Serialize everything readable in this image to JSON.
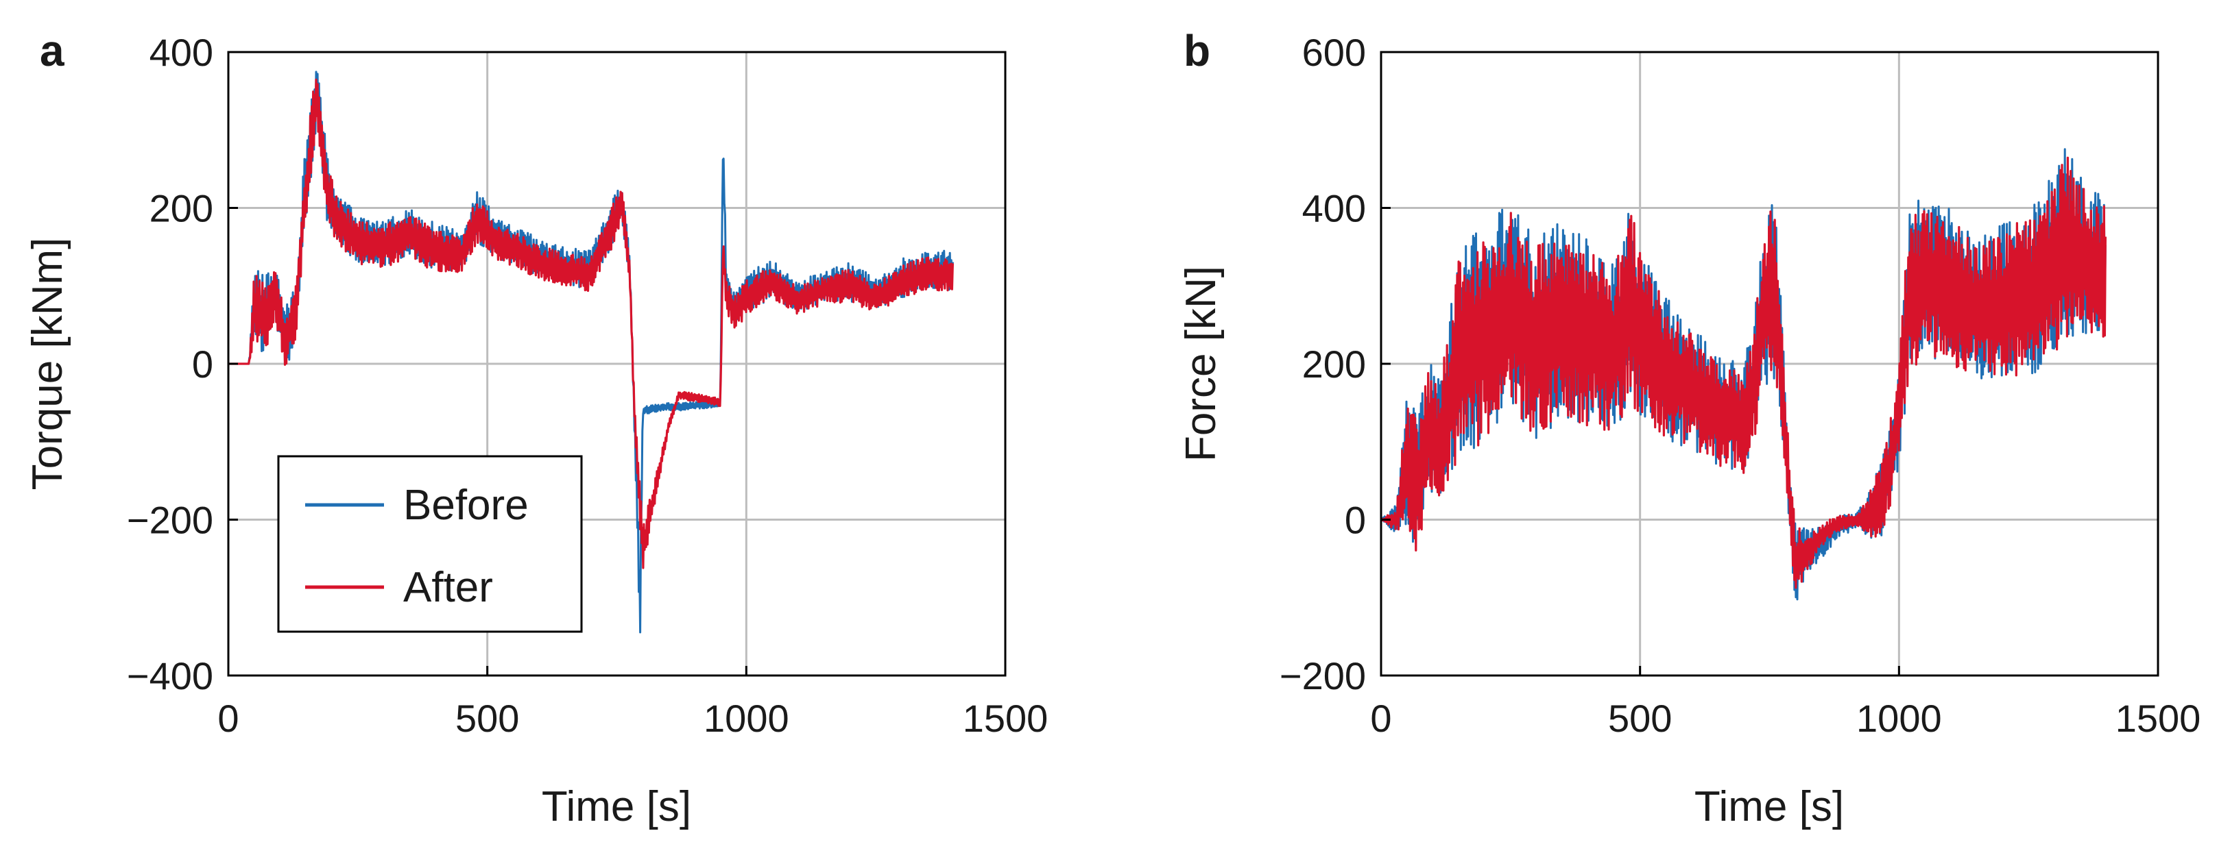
{
  "colors": {
    "before": "#1f6fb4",
    "after": "#d7132b",
    "grid": "#bdbdbd",
    "axis": "#000000"
  },
  "chart_data": [
    {
      "type": "line",
      "panel_label": "a",
      "xlabel": "Time [s]",
      "ylabel": "Torque [kNm]",
      "xlim": [
        0,
        1500
      ],
      "ylim": [
        -400,
        400
      ],
      "xticks": [
        "0",
        "500",
        "1000",
        "1500"
      ],
      "yticks": [
        "−400",
        "−200",
        "0",
        "200",
        "400"
      ],
      "grid": true,
      "legend": {
        "placement": "lower-left",
        "entries": [
          "Before",
          "After"
        ]
      },
      "series": [
        {
          "name": "Before",
          "color": "#1f6fb4",
          "x": [
            0,
            40,
            50,
            70,
            90,
            110,
            130,
            145,
            160,
            170,
            190,
            210,
            250,
            300,
            350,
            400,
            450,
            480,
            520,
            560,
            600,
            650,
            700,
            740,
            760,
            775,
            785,
            795,
            800,
            820,
            850,
            880,
            920,
            950,
            955,
            962,
            980,
            1000,
            1050,
            1100,
            1150,
            1200,
            1250,
            1300,
            1350,
            1400
          ],
          "y": [
            0,
            0,
            80,
            60,
            90,
            30,
            70,
            200,
            290,
            350,
            230,
            190,
            160,
            155,
            170,
            150,
            145,
            190,
            160,
            150,
            135,
            125,
            120,
            180,
            210,
            120,
            -90,
            -320,
            -60,
            -58,
            -55,
            -55,
            -52,
            -50,
            285,
            90,
            70,
            90,
            110,
            85,
            100,
            105,
            90,
            110,
            120,
            120
          ],
          "amplitude": [
            0,
            0,
            50,
            50,
            40,
            40,
            40,
            50,
            60,
            40,
            45,
            35,
            30,
            30,
            30,
            30,
            25,
            35,
            25,
            25,
            25,
            25,
            25,
            30,
            25,
            20,
            20,
            40,
            5,
            5,
            5,
            5,
            5,
            5,
            10,
            25,
            25,
            25,
            25,
            20,
            20,
            25,
            20,
            25,
            25,
            25
          ]
        },
        {
          "name": "After",
          "color": "#d7132b",
          "x": [
            0,
            40,
            50,
            70,
            90,
            110,
            130,
            145,
            160,
            170,
            190,
            210,
            250,
            300,
            350,
            400,
            450,
            480,
            520,
            560,
            600,
            650,
            700,
            740,
            760,
            775,
            785,
            800,
            850,
            870,
            920,
            950,
            955,
            962,
            980,
            1000,
            1050,
            1100,
            1150,
            1200,
            1250,
            1300,
            1350,
            1400
          ],
          "y": [
            0,
            0,
            75,
            55,
            85,
            30,
            65,
            195,
            285,
            345,
            225,
            185,
            155,
            150,
            165,
            145,
            140,
            185,
            155,
            145,
            130,
            120,
            115,
            175,
            205,
            115,
            -80,
            -240,
            -80,
            -40,
            -45,
            -50,
            150,
            85,
            65,
            85,
            105,
            80,
            95,
            100,
            85,
            105,
            115,
            115
          ],
          "amplitude": [
            0,
            0,
            45,
            45,
            35,
            35,
            35,
            45,
            55,
            35,
            40,
            30,
            28,
            28,
            28,
            28,
            22,
            30,
            22,
            22,
            22,
            22,
            22,
            28,
            22,
            18,
            18,
            30,
            5,
            5,
            5,
            5,
            10,
            22,
            22,
            22,
            22,
            18,
            18,
            22,
            18,
            22,
            22,
            22
          ]
        }
      ]
    },
    {
      "type": "line",
      "panel_label": "b",
      "xlabel": "Time [s]",
      "ylabel": "Force [kN]",
      "xlim": [
        0,
        1500
      ],
      "ylim": [
        -200,
        600
      ],
      "xticks": [
        "0",
        "500",
        "1000",
        "1500"
      ],
      "yticks": [
        "−200",
        "0",
        "200",
        "400",
        "600"
      ],
      "grid": true,
      "series": [
        {
          "name": "Before",
          "color": "#1f6fb4",
          "x": [
            0,
            30,
            50,
            70,
            90,
            110,
            130,
            150,
            200,
            250,
            300,
            350,
            400,
            450,
            480,
            520,
            560,
            600,
            650,
            700,
            720,
            740,
            760,
            780,
            790,
            800,
            820,
            850,
            880,
            920,
            950,
            960,
            980,
            1000,
            1020,
            1050,
            1100,
            1150,
            1200,
            1250,
            1300,
            1320,
            1350,
            1400
          ],
          "y": [
            0,
            0,
            80,
            40,
            120,
            100,
            150,
            220,
            240,
            280,
            230,
            260,
            240,
            220,
            280,
            220,
            190,
            170,
            140,
            130,
            180,
            280,
            300,
            120,
            20,
            -60,
            -40,
            -30,
            -10,
            0,
            10,
            20,
            60,
            140,
            300,
            310,
            300,
            270,
            280,
            290,
            330,
            360,
            340,
            320
          ],
          "amplitude": [
            0,
            20,
            90,
            90,
            90,
            80,
            100,
            140,
            140,
            130,
            130,
            130,
            120,
            110,
            130,
            100,
            90,
            80,
            70,
            70,
            80,
            110,
            130,
            60,
            50,
            60,
            30,
            20,
            15,
            10,
            40,
            50,
            60,
            70,
            110,
            100,
            100,
            90,
            100,
            110,
            120,
            130,
            100,
            90
          ]
        },
        {
          "name": "After",
          "color": "#d7132b",
          "x": [
            0,
            30,
            50,
            70,
            90,
            110,
            130,
            150,
            200,
            250,
            300,
            350,
            400,
            450,
            480,
            520,
            560,
            600,
            650,
            700,
            720,
            740,
            760,
            780,
            790,
            800,
            820,
            850,
            880,
            920,
            950,
            960,
            980,
            1000,
            1020,
            1050,
            1100,
            1150,
            1200,
            1250,
            1300,
            1320,
            1350,
            1400
          ],
          "y": [
            0,
            0,
            75,
            40,
            115,
            95,
            145,
            215,
            235,
            275,
            225,
            255,
            235,
            215,
            275,
            215,
            185,
            165,
            135,
            125,
            175,
            275,
            295,
            115,
            20,
            -55,
            -45,
            -20,
            -5,
            0,
            10,
            20,
            60,
            135,
            295,
            305,
            295,
            265,
            275,
            285,
            325,
            355,
            335,
            315
          ],
          "amplitude": [
            0,
            15,
            85,
            85,
            85,
            75,
            95,
            135,
            135,
            125,
            125,
            125,
            115,
            105,
            125,
            95,
            85,
            75,
            65,
            65,
            75,
            105,
            125,
            55,
            45,
            50,
            25,
            15,
            10,
            8,
            35,
            45,
            55,
            65,
            105,
            95,
            95,
            85,
            95,
            105,
            115,
            125,
            95,
            85
          ]
        }
      ]
    }
  ]
}
